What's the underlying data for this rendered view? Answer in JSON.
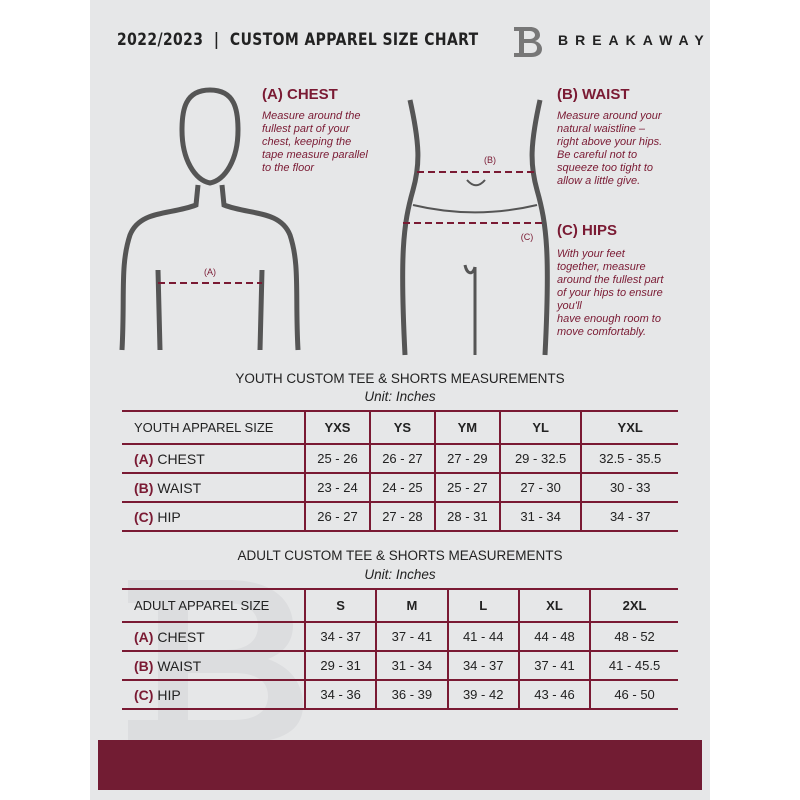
{
  "header": {
    "title": "2022/2023  |  CUSTOM APPAREL SIZE CHART",
    "brand": "BREAKAWAY",
    "logo_letter": "B"
  },
  "chest": {
    "marker": "(A)",
    "title": "(A) CHEST",
    "lines": [
      "Measure around the",
      "fullest part of your",
      "chest, keeping the",
      "tape measure parallel",
      "to the floor"
    ]
  },
  "waist": {
    "marker": "(B)",
    "title": "(B) WAIST",
    "lines": [
      "Measure around your",
      "natural waistline –",
      "right above your hips.",
      "Be careful not to",
      "squeeze too tight to",
      "allow a little give."
    ]
  },
  "hips": {
    "marker": "(C)",
    "title": "(C) HIPS",
    "lines": [
      "With your feet",
      "together, measure",
      "around the fullest part",
      "of your hips to ensure",
      "you'll",
      "have enough room to",
      "move comfortably."
    ]
  },
  "youth": {
    "title": "YOUTH CUSTOM TEE & SHORTS MEASUREMENTS",
    "unit": "Unit: Inches",
    "header": [
      "YOUTH APPAREL SIZE",
      "YXS",
      "YS",
      "YM",
      "YL",
      "YXL"
    ],
    "rows": [
      {
        "code": "(A)",
        "label": "CHEST",
        "values": [
          "25 - 26",
          "26 - 27",
          "27 - 29",
          "29 - 32.5",
          "32.5 - 35.5"
        ]
      },
      {
        "code": "(B)",
        "label": "WAIST",
        "values": [
          "23 - 24",
          "24 - 25",
          "25 - 27",
          "27 - 30",
          "30 - 33"
        ]
      },
      {
        "code": "(C)",
        "label": "HIP",
        "values": [
          "26 - 27",
          "27 - 28",
          "28 - 31",
          "31 - 34",
          "34 - 37"
        ]
      }
    ]
  },
  "adult": {
    "title": "ADULT CUSTOM TEE & SHORTS MEASUREMENTS",
    "unit": "Unit: Inches",
    "header": [
      "ADULT APPAREL SIZE",
      "S",
      "M",
      "L",
      "XL",
      "2XL"
    ],
    "rows": [
      {
        "code": "(A)",
        "label": "CHEST",
        "values": [
          "34 - 37",
          "37 - 41",
          "41 - 44",
          "44 - 48",
          "48 - 52"
        ]
      },
      {
        "code": "(B)",
        "label": "WAIST",
        "values": [
          "29 - 31",
          "31 - 34",
          "34 - 37",
          "37 - 41",
          "41 - 45.5"
        ]
      },
      {
        "code": "(C)",
        "label": "HIP",
        "values": [
          "34 - 36",
          "36 - 39",
          "39 - 42",
          "43 - 46",
          "46 - 50"
        ]
      }
    ]
  },
  "colors": {
    "accent": "#7a1a33",
    "footer": "#721c33",
    "panel": "#e6e7e8"
  }
}
